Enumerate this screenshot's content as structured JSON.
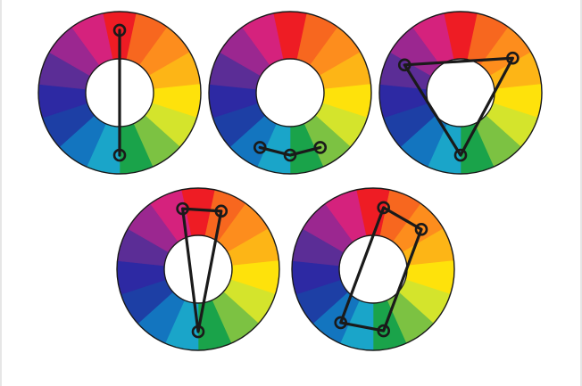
{
  "palette": {
    "segment_colors": [
      "#ee1c24",
      "#f7671f",
      "#fd8d1d",
      "#fdb516",
      "#fee20b",
      "#d4e42c",
      "#7cc242",
      "#1aa34a",
      "#1aa5c9",
      "#1375bf",
      "#1d3fa5",
      "#2d29a3",
      "#5b2d96",
      "#9b2790",
      "#d5227d"
    ],
    "outline": "#1a1a1a",
    "hole": "#ffffff",
    "background": "#ffffff"
  },
  "wheels": [
    {
      "name": "complementary-scheme-wheel",
      "scheme": "complementary",
      "points": [
        0,
        7.5
      ],
      "shape": "open"
    },
    {
      "name": "analogous-scheme-wheel",
      "scheme": "analogous",
      "points": [
        8.7,
        7.5,
        6.3
      ],
      "shape": "open"
    },
    {
      "name": "triadic-scheme-wheel",
      "scheme": "triadic",
      "points": [
        12.35,
        2.35,
        7.5
      ],
      "shape": "closed"
    },
    {
      "name": "split-complementary-scheme-wheel",
      "scheme": "split-complementary",
      "points": [
        14.4,
        0.9,
        7.5
      ],
      "shape": "closed"
    },
    {
      "name": "tetradic-scheme-wheel",
      "scheme": "tetradic",
      "points": [
        0.4,
        2.1,
        7.1,
        8.8
      ],
      "shape": "closed"
    }
  ]
}
